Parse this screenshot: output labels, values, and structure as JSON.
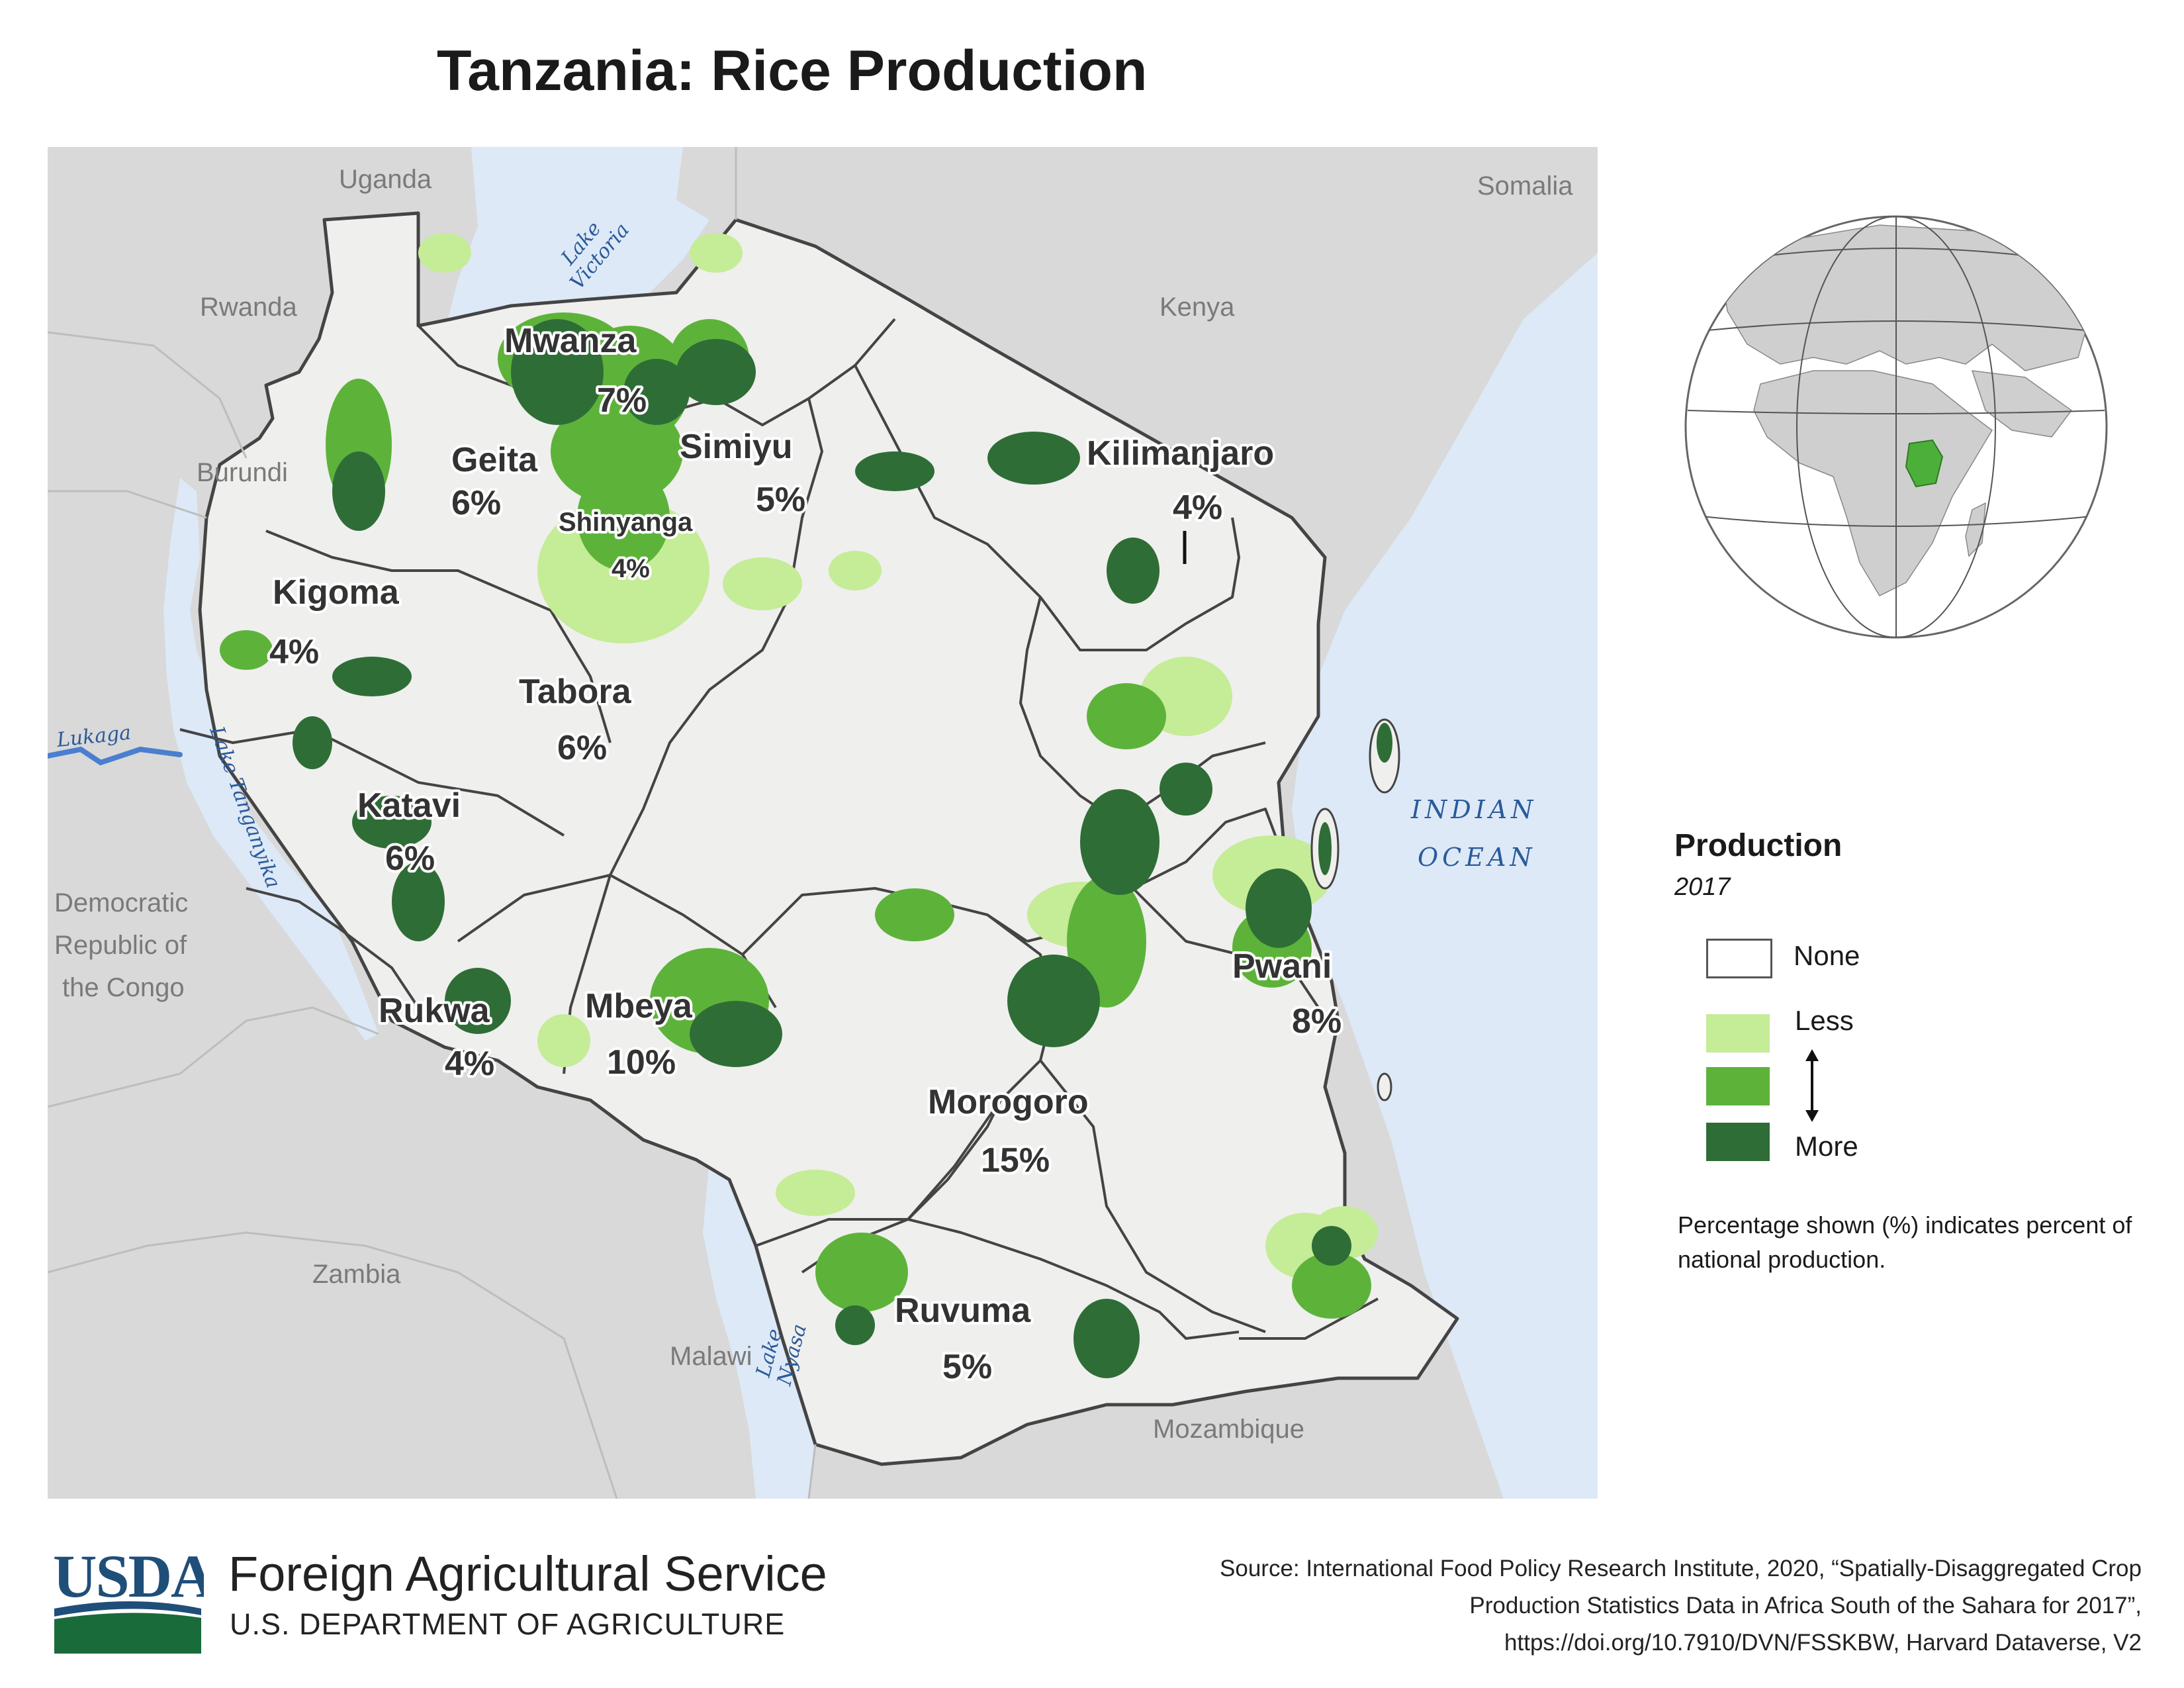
{
  "title": "Tanzania: Rice Production",
  "map": {
    "countries": [
      {
        "name": "Uganda"
      },
      {
        "name": "Somalia"
      },
      {
        "name": "Rwanda"
      },
      {
        "name": "Kenya"
      },
      {
        "name": "Burundi"
      },
      {
        "name": "Democratic Republic of the Congo"
      },
      {
        "name": "Zambia"
      },
      {
        "name": "Malawi"
      },
      {
        "name": "Mozambique"
      }
    ],
    "water": [
      {
        "name": "Lake Victoria"
      },
      {
        "name": "Lukaga"
      },
      {
        "name": "Lake Tanganyika"
      },
      {
        "name": "Lake Nyasa"
      },
      {
        "name": "INDIAN OCEAN"
      }
    ],
    "regions": [
      {
        "name": "Mwanza",
        "pct": "7%"
      },
      {
        "name": "Geita",
        "pct": "6%"
      },
      {
        "name": "Simiyu",
        "pct": "5%"
      },
      {
        "name": "Shinyanga",
        "pct": "4%"
      },
      {
        "name": "Kigoma",
        "pct": "4%"
      },
      {
        "name": "Tabora",
        "pct": "6%"
      },
      {
        "name": "Katavi",
        "pct": "6%"
      },
      {
        "name": "Rukwa",
        "pct": "4%"
      },
      {
        "name": "Mbeya",
        "pct": "10%"
      },
      {
        "name": "Morogoro",
        "pct": "15%"
      },
      {
        "name": "Pwani",
        "pct": "8%"
      },
      {
        "name": "Kilimanjaro",
        "pct": "4%"
      },
      {
        "name": "Ruvuma",
        "pct": "5%"
      }
    ],
    "colors": {
      "land": "#efefed",
      "neighbor_land": "#d9d9d9",
      "water": "#dde9f7",
      "river": "#4a7fd0",
      "border": "#444444"
    }
  },
  "globe": {
    "highlight_country": "Tanzania",
    "highlight_color": "#4caf3a"
  },
  "legend": {
    "title": "Production",
    "year": "2017",
    "items": [
      {
        "label": "None",
        "color": "#ffffff"
      },
      {
        "label": "Less",
        "color": "#c5ec97"
      },
      {
        "label": "",
        "color": "#5db33a"
      },
      {
        "label": "More",
        "color": "#2f6d37"
      }
    ],
    "note": "Percentage shown (%) indicates percent of national production."
  },
  "footer": {
    "logo_text": "USDA",
    "agency": "Foreign Agricultural Service",
    "department": "U.S. DEPARTMENT OF AGRICULTURE",
    "source": "Source: International Food Policy Research Institute, 2020, “Spatially-Disaggregated Crop Production Statistics Data in Africa South of the Sahara for 2017”, https://doi.org/10.7910/DVN/FSSKBW, Harvard Dataverse, V2"
  }
}
